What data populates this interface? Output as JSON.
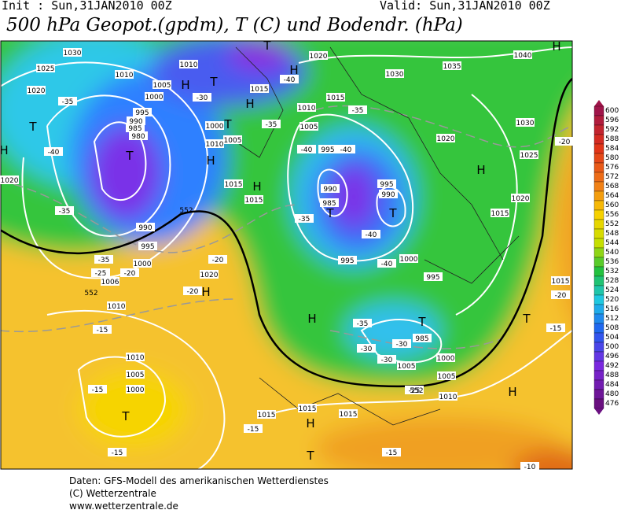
{
  "header": {
    "init": "Init : Sun,31JAN2010 00Z",
    "valid": "Valid: Sun,31JAN2010 00Z",
    "title": "500 hPa Geopot.(gpdm), T (C) und Bodendr. (hPa)"
  },
  "scale": {
    "labels": [
      600,
      596,
      592,
      588,
      584,
      580,
      576,
      572,
      568,
      564,
      560,
      556,
      552,
      548,
      544,
      540,
      536,
      532,
      528,
      524,
      520,
      516,
      512,
      508,
      504,
      500,
      496,
      492,
      488,
      484,
      480,
      476
    ]
  },
  "map": {
    "isobars": [
      "1030",
      "1025",
      "1020",
      "1010",
      "1005",
      "1000",
      "995",
      "990",
      "985",
      "980",
      "1010",
      "1015",
      "1020",
      "1030",
      "1035",
      "1040",
      "1030",
      "1025",
      "1020",
      "1015",
      "1020",
      "1010",
      "1015",
      "1005",
      "995",
      "990",
      "985",
      "995",
      "990",
      "1000",
      "995",
      "995",
      "985",
      "1000",
      "1005",
      "1010",
      "1005",
      "1015",
      "1015",
      "1015",
      "1010",
      "1005",
      "1000",
      "1020",
      "1010",
      "1006",
      "1000",
      "995",
      "990",
      "1000",
      "1005",
      "1010",
      "1015",
      "1015",
      "1020",
      "1015"
    ],
    "temps": [
      "-35",
      "-40",
      "-35",
      "-35",
      "-25",
      "-20",
      "-30",
      "-35",
      "-40",
      "-35",
      "-40",
      "-40",
      "-35",
      "-40",
      "-40",
      "-20",
      "-20",
      "-15",
      "-15",
      "-15",
      "-15",
      "-15",
      "-35",
      "-30",
      "-30",
      "-30",
      "-25",
      "-20",
      "-20",
      "-15",
      "-10"
    ],
    "centers": [
      "H",
      "T",
      "H",
      "T",
      "H",
      "H",
      "T",
      "H",
      "T",
      "H",
      "T",
      "T",
      "T",
      "H",
      "T",
      "H",
      "H",
      "T",
      "H",
      "H",
      "T",
      "H",
      "T"
    ],
    "heights": [
      "552",
      "552",
      "552"
    ]
  },
  "footer": {
    "line1": "Daten: GFS-Modell des amerikanischen Wetterdienstes",
    "line2": "(C) Wetterzentrale",
    "line3": "www.wetterzentrale.de"
  }
}
